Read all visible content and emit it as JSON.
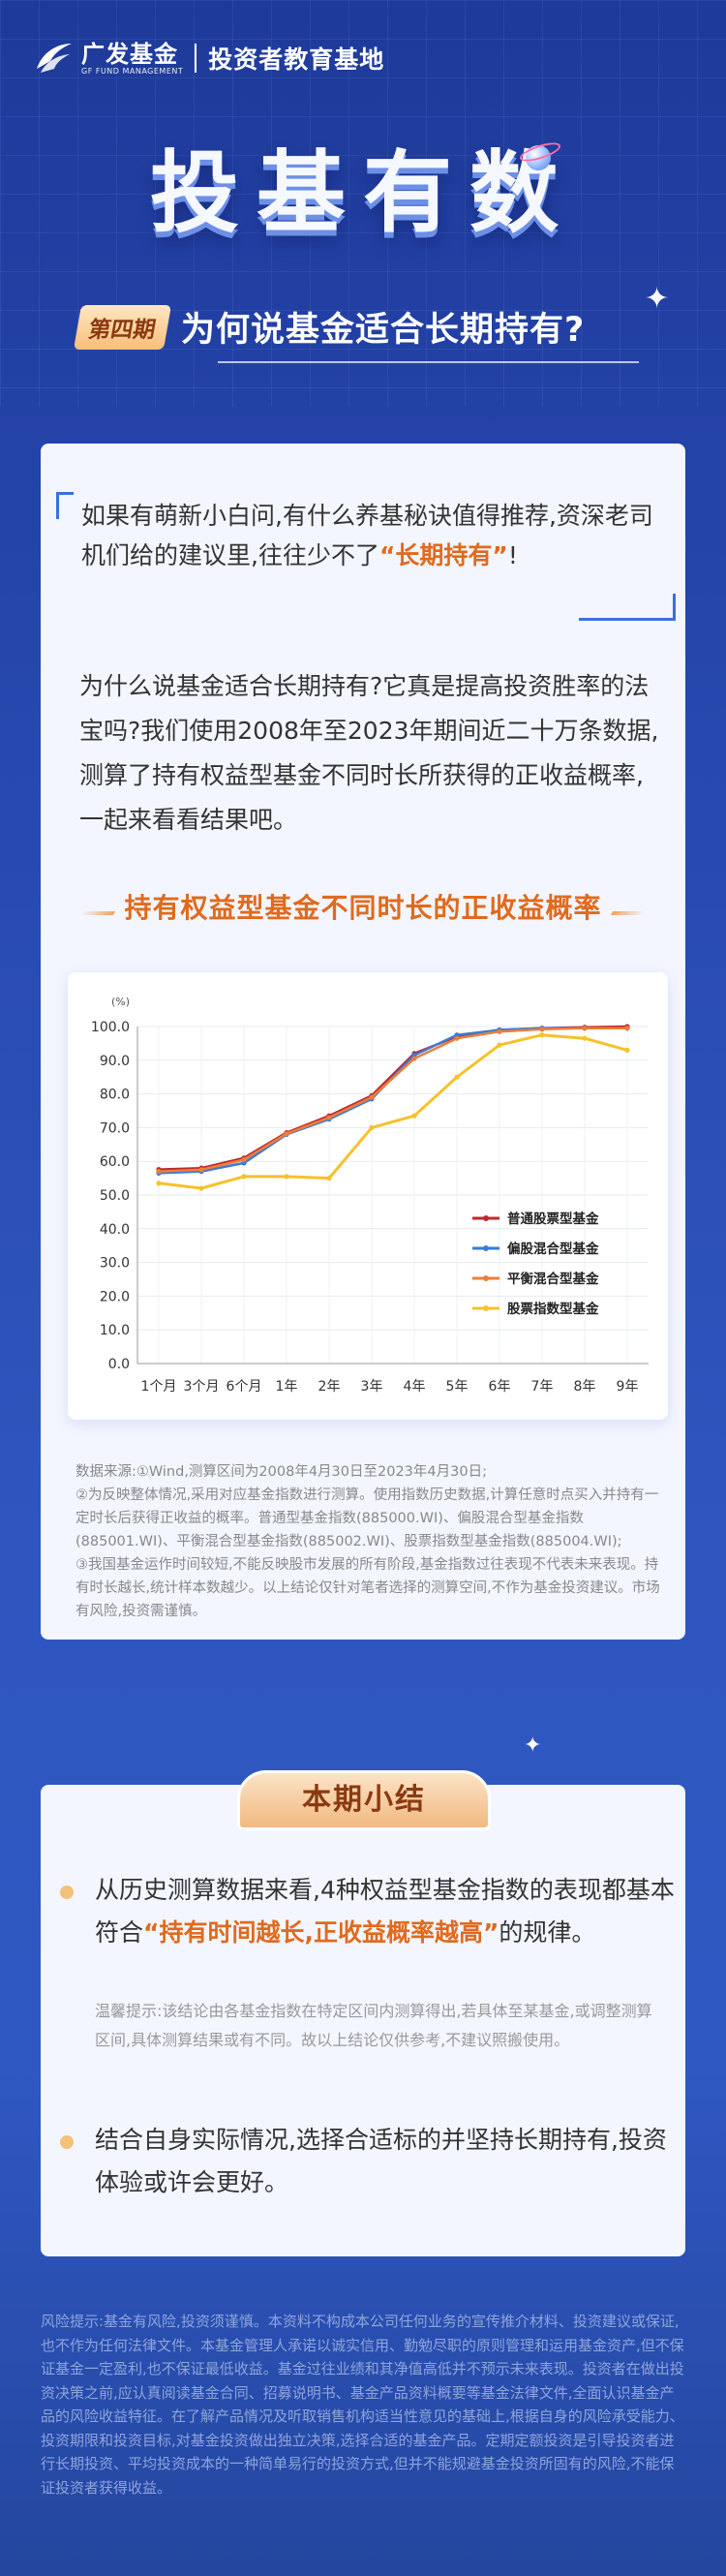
{
  "header": {
    "logo_name": "广发基金",
    "logo_en": "GF FUND MANAGEMENT",
    "subtitle": "投资者教育基地"
  },
  "hero": {
    "title": "投基有数",
    "episode": "第四期",
    "question": "为何说基金适合长期持有?"
  },
  "intro": {
    "quote_before": "如果有萌新小白问,有什么养基秘诀值得推荐,资深老司机们给的建议里,往往少不了",
    "quote_highlight": "“长期持有”",
    "quote_after": "!",
    "paragraph": "为什么说基金适合长期持有?它真是提高投资胜率的法宝吗?我们使用2008年至2023年期间近二十万条数据,测算了持有权益型基金不同时长所获得的正收益概率,一起来看看结果吧。"
  },
  "chart_heading": "持有权益型基金不同时长的正收益概率",
  "chart_data": {
    "type": "line",
    "title": "持有权益型基金不同时长的正收益概率",
    "ylabel": "(%)",
    "ylim": [
      0,
      100
    ],
    "yticks": [
      "0.0",
      "10.0",
      "20.0",
      "30.0",
      "40.0",
      "50.0",
      "60.0",
      "70.0",
      "80.0",
      "90.0",
      "100.0"
    ],
    "x": [
      "1个月",
      "3个月",
      "6个月",
      "1年",
      "2年",
      "3年",
      "4年",
      "5年",
      "6年",
      "7年",
      "8年",
      "9年"
    ],
    "legend_position": "right",
    "series": [
      {
        "name": "普通股票型基金",
        "color": "#c0282d",
        "values": [
          57.6,
          58.0,
          61.0,
          68.5,
          73.5,
          79.5,
          92.0,
          97.0,
          99.0,
          99.5,
          99.8,
          100.0
        ]
      },
      {
        "name": "偏股混合型基金",
        "color": "#3b7ad9",
        "values": [
          56.5,
          57.0,
          59.5,
          68.0,
          72.5,
          78.5,
          91.5,
          97.5,
          99.0,
          99.5,
          99.5,
          99.5
        ]
      },
      {
        "name": "平衡混合型基金",
        "color": "#ec7e3b",
        "values": [
          57.0,
          57.5,
          60.5,
          68.2,
          73.0,
          79.0,
          90.5,
          96.5,
          98.5,
          99.2,
          99.5,
          99.5
        ]
      },
      {
        "name": "股票指数型基金",
        "color": "#f6c12b",
        "values": [
          53.5,
          52.0,
          55.5,
          55.5,
          55.0,
          70.0,
          73.5,
          85.0,
          94.5,
          97.5,
          96.5,
          93.0
        ]
      }
    ]
  },
  "notes": {
    "line1": "数据来源:①Wind,测算区间为2008年4月30日至2023年4月30日;",
    "line2": "②为反映整体情况,采用对应基金指数进行测算。使用指数历史数据,计算任意时点买入并持有一定时长后获得正收益的概率。普通型基金指数(885000.WI)、偏股混合型基金指数(885001.WI)、平衡混合型基金指数(885002.WI)、股票指数型基金指数(885004.WI);",
    "line3": "③我国基金运作时间较短,不能反映股市发展的所有阶段,基金指数过往表现不代表未来表现。持有时长越长,统计样本数越少。以上结论仅针对笔者选择的测算空间,不作为基金投资建议。市场有风险,投资需谨慎。"
  },
  "summary": {
    "tab_label": "本期小结",
    "point1_before": "从历史测算数据来看,4种权益型基金指数的表现都基本符合",
    "point1_highlight": "“持有时间越长,正收益概率越高”",
    "point1_after": "的规律。",
    "tip": "温馨提示:该结论由各基金指数在特定区间内测算得出,若具体至某基金,或调整测算区间,具体测算结果或有不同。故以上结论仅供参考,不建议照搬使用。",
    "point2": "结合自身实际情况,选择合适标的并坚持长期持有,投资体验或许会更好。"
  },
  "footer": {
    "risk_notice": "风险提示:基金有风险,投资须谨慎。本资料不构成本公司任何业务的宣传推介材料、投资建议或保证,也不作为任何法律文件。本基金管理人承诺以诚实信用、勤勉尽职的原则管理和运用基金资产,但不保证基金一定盈利,也不保证最低收益。基金过往业绩和其净值高低并不预示未来表现。投资者在做出投资决策之前,应认真阅读基金合同、招募说明书、基金产品资料概要等基金法律文件,全面认识基金产品的风险收益特征。在了解产品情况及听取销售机构适当性意见的基础上,根据自身的风险承受能力、投资期限和投资目标,对基金投资做出独立决策,选择合适的基金产品。定期定额投资是引导投资者进行长期投资、平均投资成本的一种简单易行的投资方式,但并不能规避基金投资所固有的风险,不能保证投资者获得收益。"
  }
}
